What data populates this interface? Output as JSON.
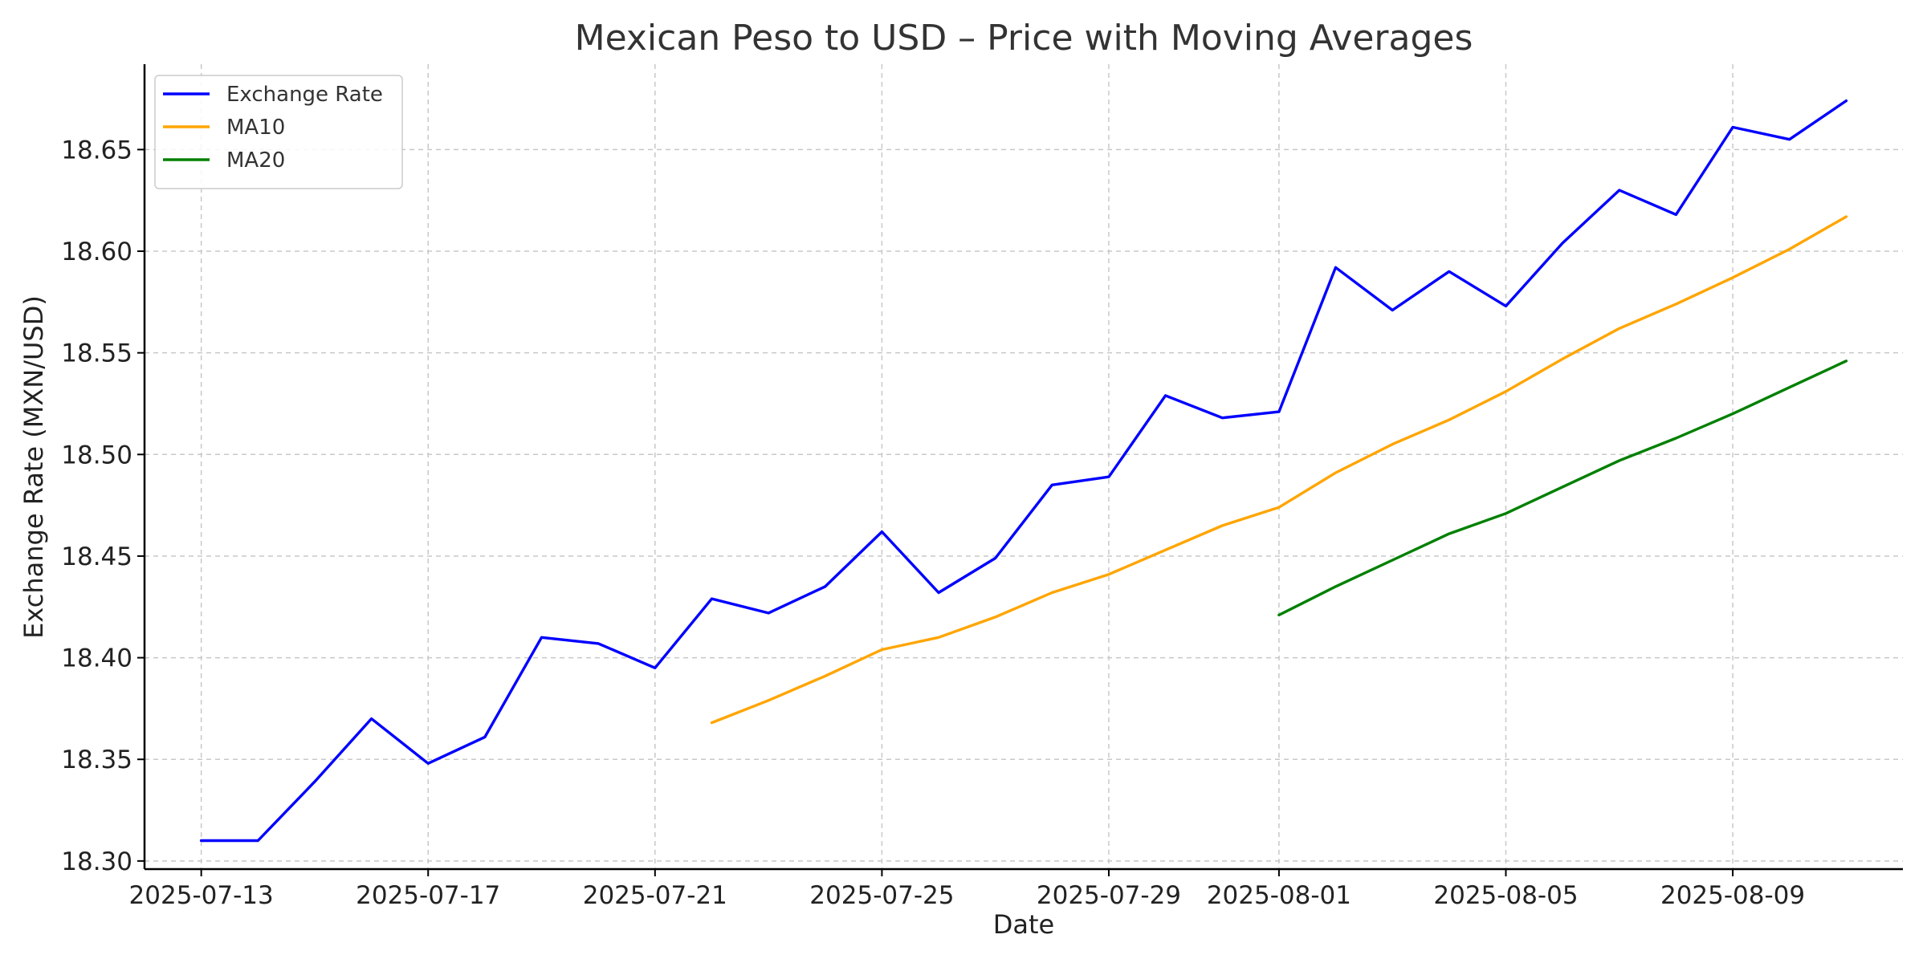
{
  "chart_data": {
    "type": "line",
    "title": "Mexican Peso to USD – Price with Moving Averages",
    "xlabel": "Date",
    "ylabel": "Exchange Rate (MXN/USD)",
    "x_axis_type": "date",
    "xlim": [
      "2025-07-12",
      "2025-08-12"
    ],
    "ylim": [
      18.296,
      18.692
    ],
    "grid": true,
    "legend_position": "top-left",
    "x_ticks": [
      "2025-07-13",
      "2025-07-17",
      "2025-07-21",
      "2025-07-25",
      "2025-07-29",
      "2025-08-01",
      "2025-08-05",
      "2025-08-09"
    ],
    "y_ticks": [
      18.3,
      18.35,
      18.4,
      18.45,
      18.5,
      18.55,
      18.6,
      18.65
    ],
    "y_tick_labels": [
      "18.30",
      "18.35",
      "18.40",
      "18.45",
      "18.50",
      "18.55",
      "18.60",
      "18.65"
    ],
    "series": [
      {
        "name": "Exchange Rate",
        "color": "#0000ff",
        "points": [
          [
            "2025-07-13",
            18.31
          ],
          [
            "2025-07-14",
            18.31
          ],
          [
            "2025-07-15",
            18.339
          ],
          [
            "2025-07-16",
            18.37
          ],
          [
            "2025-07-17",
            18.348
          ],
          [
            "2025-07-18",
            18.361
          ],
          [
            "2025-07-19",
            18.41
          ],
          [
            "2025-07-20",
            18.407
          ],
          [
            "2025-07-21",
            18.395
          ],
          [
            "2025-07-22",
            18.429
          ],
          [
            "2025-07-23",
            18.422
          ],
          [
            "2025-07-24",
            18.435
          ],
          [
            "2025-07-25",
            18.462
          ],
          [
            "2025-07-26",
            18.432
          ],
          [
            "2025-07-27",
            18.449
          ],
          [
            "2025-07-28",
            18.485
          ],
          [
            "2025-07-29",
            18.489
          ],
          [
            "2025-07-30",
            18.529
          ],
          [
            "2025-07-31",
            18.518
          ],
          [
            "2025-08-01",
            18.521
          ],
          [
            "2025-08-02",
            18.592
          ],
          [
            "2025-08-03",
            18.571
          ],
          [
            "2025-08-04",
            18.59
          ],
          [
            "2025-08-05",
            18.573
          ],
          [
            "2025-08-06",
            18.604
          ],
          [
            "2025-08-07",
            18.63
          ],
          [
            "2025-08-08",
            18.618
          ],
          [
            "2025-08-09",
            18.661
          ],
          [
            "2025-08-10",
            18.655
          ],
          [
            "2025-08-11",
            18.674
          ]
        ]
      },
      {
        "name": "MA10",
        "color": "#ffa500",
        "points": [
          [
            "2025-07-22",
            18.368
          ],
          [
            "2025-07-23",
            18.379
          ],
          [
            "2025-07-24",
            18.391
          ],
          [
            "2025-07-25",
            18.404
          ],
          [
            "2025-07-26",
            18.41
          ],
          [
            "2025-07-27",
            18.42
          ],
          [
            "2025-07-28",
            18.432
          ],
          [
            "2025-07-29",
            18.441
          ],
          [
            "2025-07-30",
            18.453
          ],
          [
            "2025-07-31",
            18.465
          ],
          [
            "2025-08-01",
            18.474
          ],
          [
            "2025-08-02",
            18.491
          ],
          [
            "2025-08-03",
            18.505
          ],
          [
            "2025-08-04",
            18.517
          ],
          [
            "2025-08-05",
            18.531
          ],
          [
            "2025-08-06",
            18.547
          ],
          [
            "2025-08-07",
            18.562
          ],
          [
            "2025-08-08",
            18.574
          ],
          [
            "2025-08-09",
            18.587
          ],
          [
            "2025-08-10",
            18.601
          ],
          [
            "2025-08-11",
            18.617
          ]
        ]
      },
      {
        "name": "MA20",
        "color": "#008000",
        "points": [
          [
            "2025-08-01",
            18.421
          ],
          [
            "2025-08-02",
            18.435
          ],
          [
            "2025-08-03",
            18.448
          ],
          [
            "2025-08-04",
            18.461
          ],
          [
            "2025-08-05",
            18.471
          ],
          [
            "2025-08-06",
            18.484
          ],
          [
            "2025-08-07",
            18.497
          ],
          [
            "2025-08-08",
            18.508
          ],
          [
            "2025-08-09",
            18.52
          ],
          [
            "2025-08-10",
            18.533
          ],
          [
            "2025-08-11",
            18.546
          ]
        ]
      }
    ]
  }
}
